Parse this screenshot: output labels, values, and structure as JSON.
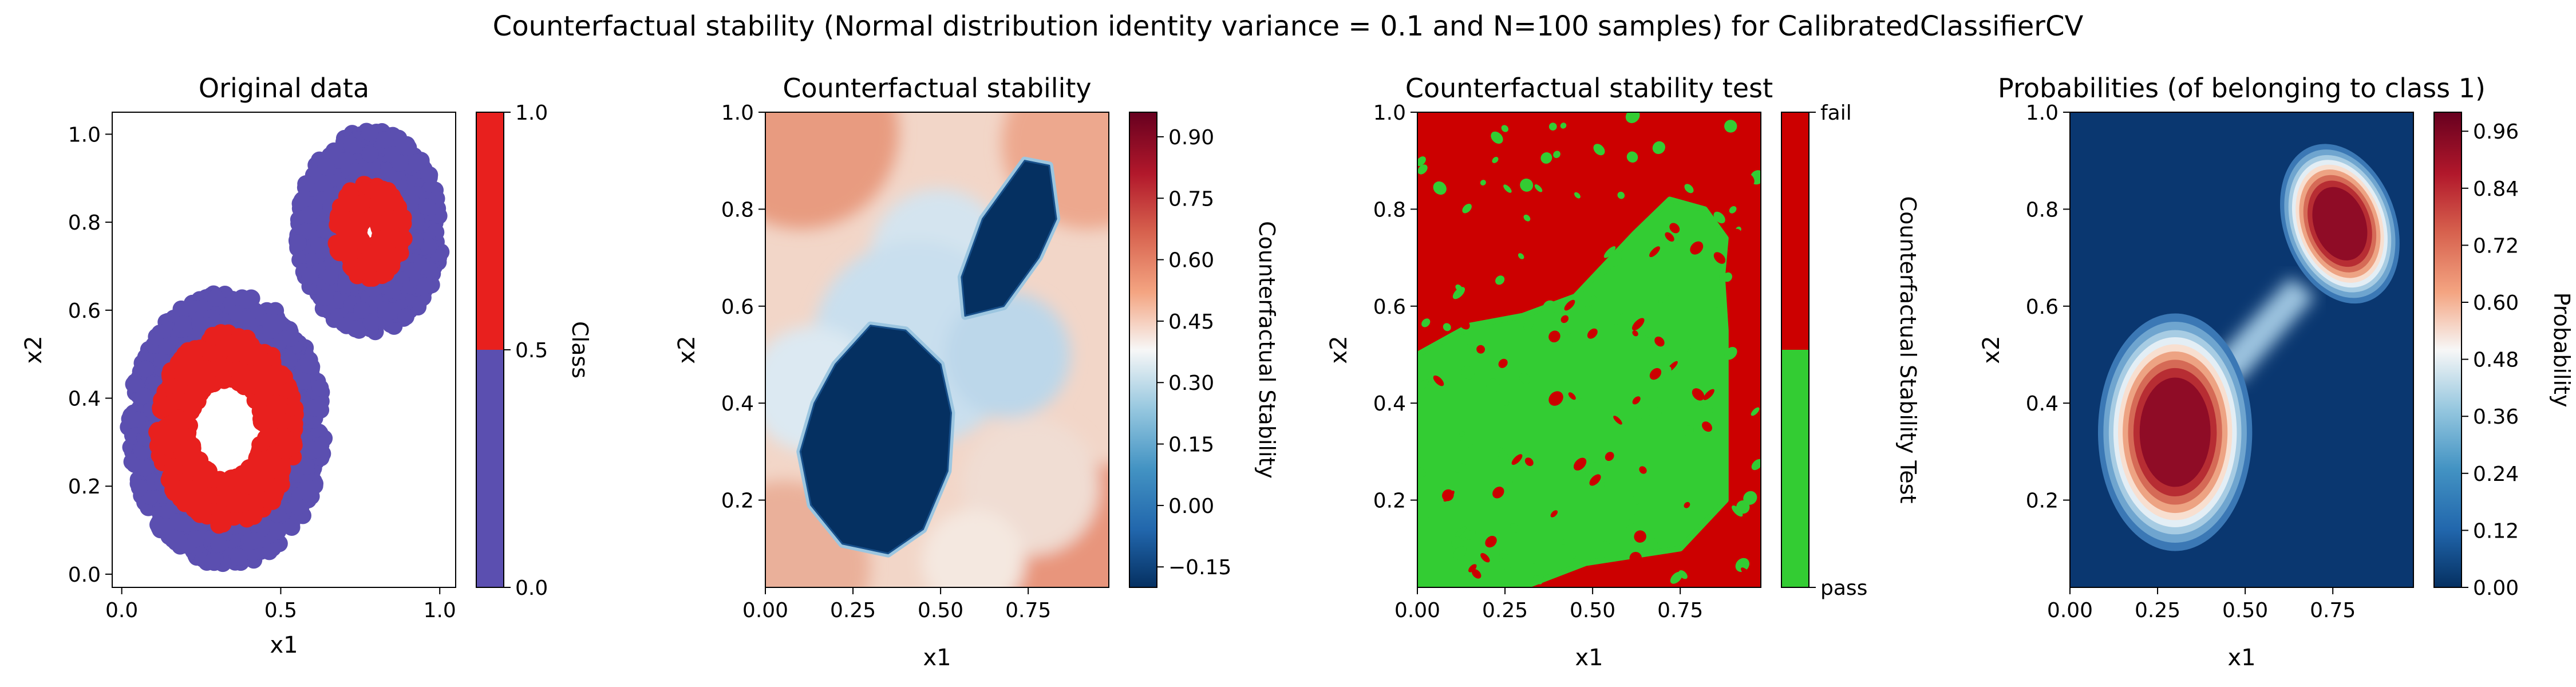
{
  "suptitle": "Counterfactual stability (Normal distribution identity variance = 0.1 and N=100 samples) for CalibratedClassifierCV",
  "colors": {
    "class0": "#5b4fb0",
    "class1": "#e8201e",
    "fail": "#cc0000",
    "pass": "#33cc33",
    "rdbu_low": "#053061",
    "rdbu_mid": "#f7f7f7",
    "rdbu_high": "#67001f"
  },
  "panels": {
    "p1": {
      "title": "Original data",
      "xlabel": "x1",
      "ylabel": "x2",
      "cbar_label": "Class"
    },
    "p2": {
      "title": "Counterfactual stability",
      "xlabel": "x1",
      "ylabel": "x2",
      "cbar_label": "Counterfactual Stability"
    },
    "p3": {
      "title": "Counterfactual stability test",
      "xlabel": "x1",
      "ylabel": "x2",
      "cbar_label": "Counterfactual Stability Test"
    },
    "p4": {
      "title": "Probabilities (of belonging to class 1)",
      "xlabel": "x1",
      "ylabel": "x2",
      "cbar_label": "Probability"
    }
  },
  "chart_data": [
    {
      "type": "scatter",
      "title": "Original data",
      "xlabel": "x1",
      "ylabel": "x2",
      "xlim": [
        -0.03,
        1.05
      ],
      "ylim": [
        -0.03,
        1.05
      ],
      "xticks": [
        "0.0",
        "0.5",
        "1.0"
      ],
      "xtick_values": [
        0.0,
        0.5,
        1.0
      ],
      "yticks": [
        "0.0",
        "0.2",
        "0.4",
        "0.6",
        "0.8",
        "1.0"
      ],
      "ytick_values": [
        0.0,
        0.2,
        0.4,
        0.6,
        0.8,
        1.0
      ],
      "series": [
        {
          "class": 0,
          "color": "#5b4fb0",
          "description_shape": "outer rings",
          "rings": [
            {
              "center": [
                0.33,
                0.33
              ],
              "r_inner": 0.22,
              "r_outer": 0.31
            },
            {
              "center": [
                0.78,
                0.78
              ],
              "r_inner": 0.11,
              "r_outer": 0.23
            }
          ]
        },
        {
          "class": 1,
          "color": "#e8201e",
          "description_shape": "inner rings",
          "rings": [
            {
              "center": [
                0.33,
                0.33
              ],
              "r_inner": 0.11,
              "r_outer": 0.22
            },
            {
              "center": [
                0.78,
                0.78
              ],
              "r_inner": 0.03,
              "r_outer": 0.11
            }
          ]
        }
      ],
      "colorbar": {
        "label": "Class",
        "ticks": [
          "0.0",
          "0.5",
          "1.0"
        ],
        "tick_values": [
          0.0,
          0.5,
          1.0
        ]
      }
    },
    {
      "type": "heatmap",
      "title": "Counterfactual stability",
      "xlabel": "x1",
      "ylabel": "x2",
      "xlim": [
        0.0,
        0.98
      ],
      "ylim": [
        0.02,
        1.0
      ],
      "xticks": [
        "0.00",
        "0.25",
        "0.50",
        "0.75"
      ],
      "xtick_values": [
        0.0,
        0.25,
        0.5,
        0.75
      ],
      "yticks": [
        "0.2",
        "0.4",
        "0.6",
        "0.8",
        "1.0"
      ],
      "ytick_values": [
        0.2,
        0.4,
        0.6,
        0.8,
        1.0
      ],
      "colormap": "RdBu_r",
      "value_range": [
        -0.2,
        0.96
      ],
      "regions": [
        {
          "value": -0.2,
          "polygon": [
            [
              0.14,
              0.4
            ],
            [
              0.2,
              0.48
            ],
            [
              0.3,
              0.56
            ],
            [
              0.4,
              0.55
            ],
            [
              0.5,
              0.48
            ],
            [
              0.53,
              0.38
            ],
            [
              0.52,
              0.26
            ],
            [
              0.45,
              0.14
            ],
            [
              0.35,
              0.09
            ],
            [
              0.22,
              0.11
            ],
            [
              0.13,
              0.19
            ],
            [
              0.1,
              0.3
            ]
          ]
        },
        {
          "value": -0.2,
          "polygon": [
            [
              0.56,
              0.66
            ],
            [
              0.62,
              0.78
            ],
            [
              0.74,
              0.9
            ],
            [
              0.81,
              0.89
            ],
            [
              0.83,
              0.78
            ],
            [
              0.78,
              0.7
            ],
            [
              0.68,
              0.6
            ],
            [
              0.57,
              0.58
            ]
          ]
        }
      ],
      "background_trend": "values near 0.1-0.6 increasing toward the corners",
      "colorbar": {
        "label": "Counterfactual Stability",
        "ticks": [
          "−0.15",
          "0.00",
          "0.15",
          "0.30",
          "0.45",
          "0.60",
          "0.75",
          "0.90"
        ],
        "tick_values": [
          -0.15,
          0.0,
          0.15,
          0.3,
          0.45,
          0.6,
          0.75,
          0.9
        ]
      }
    },
    {
      "type": "heatmap",
      "title": "Counterfactual stability test",
      "xlabel": "x1",
      "ylabel": "x2",
      "xlim": [
        0.0,
        0.98
      ],
      "ylim": [
        0.02,
        1.0
      ],
      "xticks": [
        "0.00",
        "0.25",
        "0.50",
        "0.75"
      ],
      "xtick_values": [
        0.0,
        0.25,
        0.5,
        0.75
      ],
      "yticks": [
        "0.2",
        "0.4",
        "0.6",
        "0.8",
        "1.0"
      ],
      "ytick_values": [
        0.2,
        0.4,
        0.6,
        0.8,
        1.0
      ],
      "categories": [
        "pass",
        "fail"
      ],
      "pass_region": [
        [
          0.0,
          0.5
        ],
        [
          0.0,
          0.02
        ],
        [
          0.3,
          0.02
        ],
        [
          0.48,
          0.07
        ],
        [
          0.75,
          0.1
        ],
        [
          0.88,
          0.2
        ],
        [
          0.88,
          0.55
        ],
        [
          0.87,
          0.66
        ],
        [
          0.88,
          0.74
        ],
        [
          0.82,
          0.8
        ],
        [
          0.72,
          0.82
        ],
        [
          0.62,
          0.75
        ],
        [
          0.45,
          0.62
        ],
        [
          0.3,
          0.58
        ],
        [
          0.15,
          0.56
        ]
      ],
      "colorbar": {
        "label": "Counterfactual Stability Test",
        "ticks": [
          "pass",
          "fail"
        ],
        "colors": [
          "#33cc33",
          "#cc0000"
        ]
      }
    },
    {
      "type": "heatmap",
      "title": "Probabilities (of belonging to class 1)",
      "xlabel": "x1",
      "ylabel": "x2",
      "xlim": [
        0.0,
        0.98
      ],
      "ylim": [
        0.02,
        1.0
      ],
      "xticks": [
        "0.00",
        "0.25",
        "0.50",
        "0.75"
      ],
      "xtick_values": [
        0.0,
        0.25,
        0.5,
        0.75
      ],
      "yticks": [
        "0.2",
        "0.4",
        "0.6",
        "0.8",
        "1.0"
      ],
      "ytick_values": [
        0.2,
        0.4,
        0.6,
        0.8,
        1.0
      ],
      "colormap": "RdBu_r",
      "value_range": [
        0.0,
        1.0
      ],
      "peaks": [
        {
          "center": [
            0.3,
            0.33
          ],
          "value": 0.99
        },
        {
          "center": [
            0.77,
            0.77
          ],
          "value": 0.99
        }
      ],
      "colorbar": {
        "label": "Probability",
        "ticks": [
          "0.00",
          "0.12",
          "0.24",
          "0.36",
          "0.48",
          "0.60",
          "0.72",
          "0.84",
          "0.96"
        ],
        "tick_values": [
          0.0,
          0.12,
          0.24,
          0.36,
          0.48,
          0.6,
          0.72,
          0.84,
          0.96
        ]
      }
    }
  ]
}
